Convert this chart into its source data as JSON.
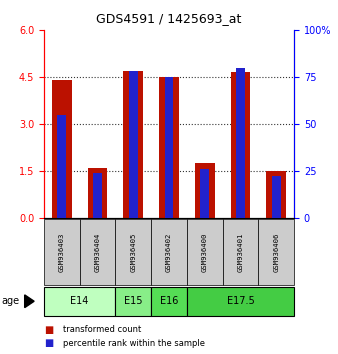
{
  "title": "GDS4591 / 1425693_at",
  "samples": [
    "GSM936403",
    "GSM936404",
    "GSM936405",
    "GSM936402",
    "GSM936400",
    "GSM936401",
    "GSM936406"
  ],
  "transformed_count": [
    4.4,
    1.6,
    4.7,
    4.5,
    1.75,
    4.65,
    1.5
  ],
  "percentile_rank": [
    55,
    24,
    78,
    75,
    26,
    80,
    22
  ],
  "age_groups": [
    {
      "label": "E14",
      "start": 0,
      "end": 2,
      "color": "#bfffbf"
    },
    {
      "label": "E15",
      "start": 2,
      "end": 3,
      "color": "#88ee88"
    },
    {
      "label": "E16",
      "start": 3,
      "end": 4,
      "color": "#55dd55"
    },
    {
      "label": "E17.5",
      "start": 4,
      "end": 7,
      "color": "#44cc44"
    }
  ],
  "left_ylim": [
    0,
    6
  ],
  "left_yticks": [
    0,
    1.5,
    3,
    4.5,
    6
  ],
  "right_ylim": [
    0,
    100
  ],
  "right_yticks": [
    0,
    25,
    50,
    75,
    100
  ],
  "bar_color_red": "#bb1100",
  "bar_color_blue": "#2222cc",
  "bar_width": 0.55,
  "blue_bar_width": 0.25,
  "bg_color": "#ffffff",
  "sample_box_color": "#cccccc",
  "grid_color": "#333333"
}
